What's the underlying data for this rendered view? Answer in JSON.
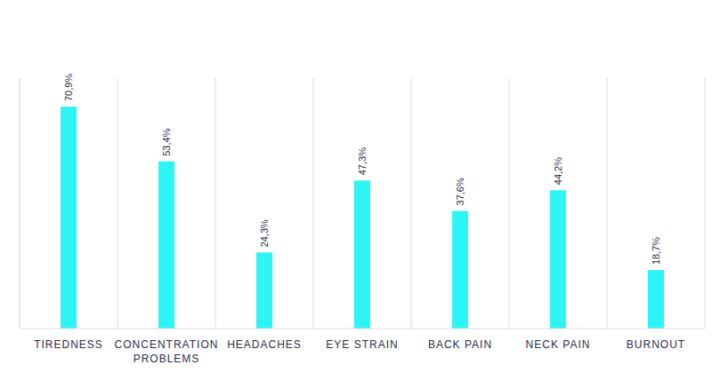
{
  "chart_data": {
    "type": "bar",
    "categories": [
      "TIREDNESS",
      "CONCENTRATION PROBLEMS",
      "HEADACHES",
      "EYE STRAIN",
      "BACK PAIN",
      "NECK PAIN",
      "BURNOUT"
    ],
    "values": [
      70.9,
      53.4,
      24.3,
      47.3,
      37.6,
      44.2,
      18.7
    ],
    "value_labels": [
      "70,9%",
      "53,4%",
      "24,3%",
      "47,3%",
      "37,6%",
      "44,2%",
      "18,7%"
    ],
    "color": "#2ef5f5",
    "ylim": [
      0,
      80
    ],
    "grid": true,
    "data_labels": true,
    "tick_labels": "x"
  }
}
